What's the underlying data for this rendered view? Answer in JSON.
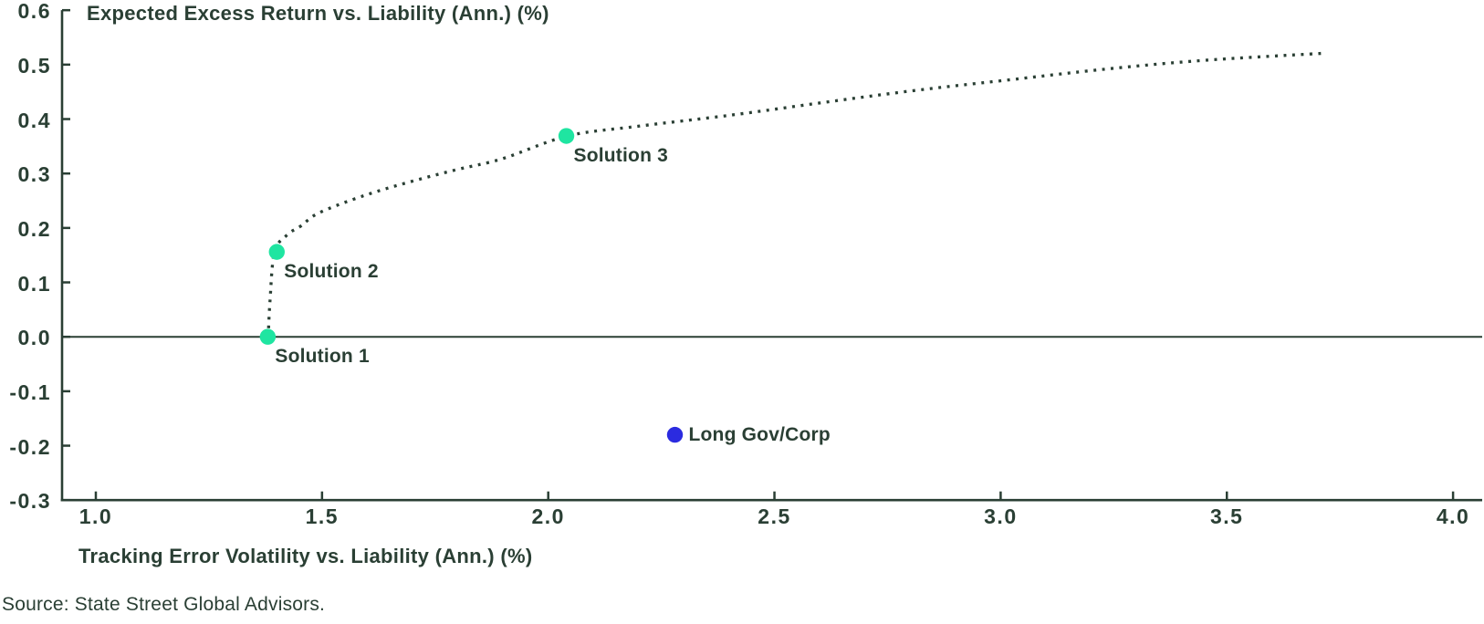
{
  "colors": {
    "ink": "#2A3F34",
    "solution_green": "#1FE5A1",
    "benchmark_blue": "#2B2BE0",
    "background": "#FFFFFF"
  },
  "footer": {
    "source": "Source: State Street Global Advisors."
  },
  "chart_data": {
    "type": "scatter",
    "title": "Expected Excess Return vs. Liability (Ann.) (%)",
    "xlabel": "Tracking Error Volatility vs. Liability (Ann.) (%)",
    "ylabel": "",
    "xlim": [
      0.93,
      4.06
    ],
    "ylim": [
      -0.3,
      0.6
    ],
    "grid": false,
    "zero_line": true,
    "x_ticks": [
      1.0,
      1.5,
      2.0,
      2.5,
      3.0,
      3.5,
      4.0
    ],
    "x_tick_labels": [
      "1.0",
      "1.5",
      "2.0",
      "2.5",
      "3.0",
      "3.5",
      "4.0"
    ],
    "y_ticks": [
      0.6,
      0.5,
      0.4,
      0.3,
      0.2,
      0.1,
      0.0,
      -0.1,
      -0.2,
      -0.3
    ],
    "y_tick_labels": [
      "0.6",
      "0.5",
      "0.4",
      "0.3",
      "0.2",
      "0.1",
      "0.0",
      "-0.1",
      "-0.2",
      "-0.3"
    ],
    "points": [
      {
        "label": "Solution 1",
        "x": 1.38,
        "y": 0.0,
        "color_key": "solution_green",
        "label_position": "below-right"
      },
      {
        "label": "Solution 2",
        "x": 1.4,
        "y": 0.156,
        "color_key": "solution_green",
        "label_position": "below-right"
      },
      {
        "label": "Solution 3",
        "x": 2.04,
        "y": 0.369,
        "color_key": "solution_green",
        "label_position": "below-right"
      },
      {
        "label": "Long Gov/Corp",
        "x": 2.28,
        "y": -0.18,
        "color_key": "benchmark_blue",
        "label_position": "right"
      }
    ],
    "frontier_curve": {
      "style": "dotted",
      "points": [
        [
          1.381,
          0.0
        ],
        [
          1.385,
          0.065
        ],
        [
          1.395,
          0.156
        ],
        [
          1.424,
          0.188
        ],
        [
          1.454,
          0.204
        ],
        [
          1.494,
          0.228
        ],
        [
          1.595,
          0.26
        ],
        [
          1.696,
          0.285
        ],
        [
          1.797,
          0.307
        ],
        [
          1.898,
          0.327
        ],
        [
          2.043,
          0.369
        ],
        [
          2.2,
          0.387
        ],
        [
          2.402,
          0.407
        ],
        [
          2.604,
          0.43
        ],
        [
          2.805,
          0.452
        ],
        [
          3.007,
          0.471
        ],
        [
          3.235,
          0.492
        ],
        [
          3.451,
          0.508
        ],
        [
          3.717,
          0.521
        ]
      ]
    }
  }
}
